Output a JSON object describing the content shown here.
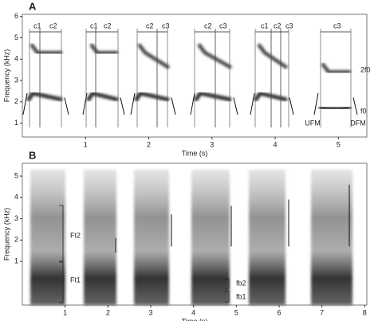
{
  "panels": [
    {
      "label": "A",
      "x_label": "Time (s)",
      "y_label": "Frequency (kHz)",
      "xlim": [
        0,
        5.45
      ],
      "ylim": [
        0.35,
        6.1
      ],
      "xticks": [
        1,
        2,
        3,
        4,
        5
      ],
      "yticks": [
        1,
        2,
        3,
        4,
        5,
        6
      ],
      "annotations": [
        "c1",
        "c2",
        "c1",
        "c2",
        "c2",
        "c3",
        "c2",
        "c3",
        "c1",
        "c2",
        "c3",
        "c3",
        "2f0",
        "f0",
        "UFM",
        "DFM"
      ]
    },
    {
      "label": "B",
      "x_label": "Time (s)",
      "y_label": "Frequency (kHz)",
      "xlim": [
        0,
        8.05
      ],
      "ylim": [
        -1.05,
        5.6
      ],
      "xticks": [
        1,
        2,
        3,
        4,
        5,
        6,
        7,
        8
      ],
      "yticks": [
        1,
        2,
        3,
        4,
        5
      ],
      "annotations": [
        "Ft2",
        "Ft1",
        "fb2",
        "fb1"
      ]
    }
  ]
}
